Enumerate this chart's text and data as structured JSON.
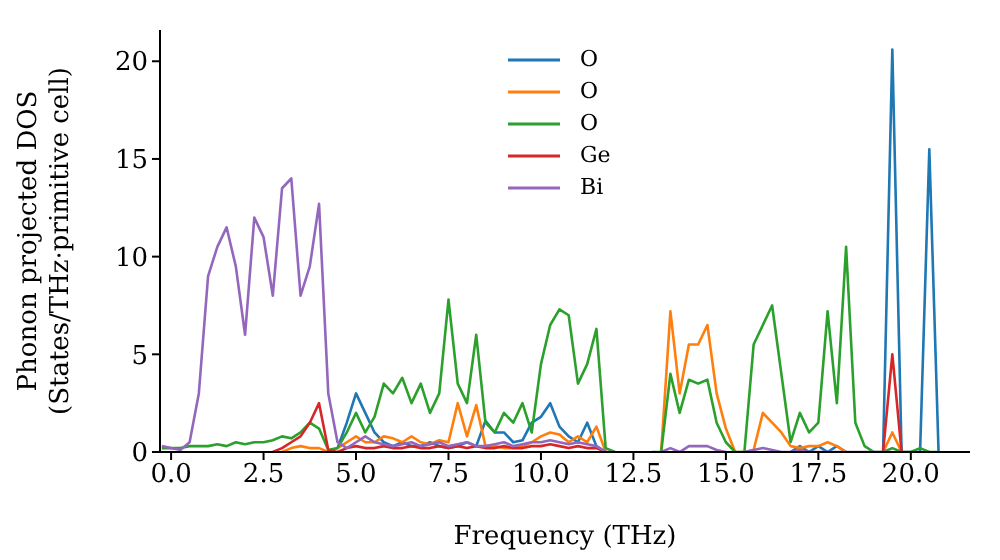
{
  "chart_data": {
    "type": "line",
    "xlabel": "Frequency (THz)",
    "ylabel": "Phonon projected DOS\n(States/THz·primitive cell)",
    "xlim": [
      -0.3,
      21.6
    ],
    "xticks": [
      {
        "value": 0,
        "label": "0.0"
      },
      {
        "value": 2.5,
        "label": "2.5"
      },
      {
        "value": 5,
        "label": "5.0"
      },
      {
        "value": 7.5,
        "label": "7.5"
      },
      {
        "value": 10,
        "label": "10.0"
      },
      {
        "value": 12.5,
        "label": "12.5"
      },
      {
        "value": 15,
        "label": "15.0"
      },
      {
        "value": 17.5,
        "label": "17.5"
      },
      {
        "value": 20,
        "label": "20.0"
      }
    ],
    "ylim": [
      0,
      21.6
    ],
    "yticks": [
      0,
      5,
      10,
      15,
      20
    ],
    "legend": "top",
    "marker": "none",
    "line_style": "solid",
    "x": [
      -0.25,
      0,
      0.25,
      0.5,
      0.75,
      1,
      1.25,
      1.5,
      1.75,
      2,
      2.25,
      2.5,
      2.75,
      3,
      3.25,
      3.5,
      3.75,
      4,
      4.25,
      4.5,
      4.75,
      5,
      5.25,
      5.5,
      5.75,
      6,
      6.25,
      6.5,
      6.75,
      7,
      7.25,
      7.5,
      7.75,
      8,
      8.25,
      8.5,
      8.75,
      9,
      9.25,
      9.5,
      9.75,
      10,
      10.25,
      10.5,
      10.75,
      11,
      11.25,
      11.5,
      11.75,
      12,
      12.25,
      12.5,
      12.75,
      13,
      13.25,
      13.5,
      13.75,
      14,
      14.25,
      14.5,
      14.75,
      15,
      15.25,
      15.5,
      15.75,
      16,
      16.25,
      16.5,
      16.75,
      17,
      17.25,
      17.5,
      17.75,
      18,
      18.25,
      18.5,
      18.75,
      19,
      19.25,
      19.5,
      19.75,
      20,
      20.25,
      20.5,
      20.75
    ],
    "series": [
      {
        "name": "O",
        "color": "#1f77b4",
        "values": [
          null,
          null,
          null,
          null,
          null,
          null,
          null,
          null,
          null,
          null,
          null,
          null,
          null,
          null,
          null,
          null,
          null,
          null,
          null,
          0.2,
          1.5,
          3.0,
          2.0,
          1.0,
          0.5,
          0.3,
          0.5,
          0.3,
          0.3,
          0.5,
          0.3,
          0.2,
          0.3,
          0.5,
          0.3,
          1.6,
          1.0,
          1.0,
          0.5,
          0.6,
          1.5,
          1.8,
          2.5,
          1.3,
          0.8,
          0.5,
          1.5,
          0.3,
          0,
          null,
          null,
          null,
          null,
          null,
          null,
          null,
          null,
          null,
          null,
          null,
          null,
          null,
          null,
          null,
          null,
          null,
          null,
          null,
          0,
          0.3,
          0,
          0.3,
          0,
          0.3,
          0,
          null,
          null,
          null,
          0,
          20.6,
          0,
          0,
          0,
          15.5,
          0
        ]
      },
      {
        "name": "O",
        "color": "#ff7f0e",
        "values": [
          null,
          null,
          null,
          null,
          null,
          null,
          null,
          null,
          null,
          null,
          null,
          null,
          null,
          0,
          0.2,
          0.3,
          0.2,
          0.2,
          0,
          0.2,
          0.5,
          0.8,
          0.5,
          0.5,
          0.8,
          0.7,
          0.5,
          0.8,
          0.5,
          0.4,
          0.6,
          0.5,
          2.5,
          0.8,
          2.4,
          0.3,
          0.3,
          0.2,
          0.2,
          0.3,
          0.5,
          0.8,
          1.0,
          0.9,
          0.5,
          0.8,
          0.5,
          1.3,
          0,
          null,
          null,
          null,
          null,
          null,
          0,
          7.2,
          3.0,
          5.5,
          5.5,
          6.5,
          3.0,
          1.2,
          0,
          0,
          0.1,
          2.0,
          1.5,
          1.0,
          0.3,
          0.2,
          0.3,
          0.3,
          0.5,
          0.3,
          0,
          null,
          null,
          null,
          0,
          1.0,
          0,
          null,
          null,
          null,
          null
        ]
      },
      {
        "name": "O",
        "color": "#2ca02c",
        "values": [
          0.2,
          0.2,
          0.2,
          0.3,
          0.3,
          0.3,
          0.4,
          0.3,
          0.5,
          0.4,
          0.5,
          0.5,
          0.6,
          0.8,
          0.7,
          1.0,
          1.5,
          1.2,
          0.1,
          0.2,
          1.0,
          2.0,
          1.0,
          1.8,
          3.5,
          3.0,
          3.8,
          2.5,
          3.5,
          2.0,
          3.0,
          7.8,
          3.5,
          2.5,
          6.0,
          1.5,
          1.0,
          2.0,
          1.5,
          2.5,
          1.0,
          4.5,
          6.5,
          7.3,
          7.0,
          3.5,
          4.5,
          6.3,
          0.2,
          0,
          null,
          null,
          null,
          0,
          0,
          4.0,
          2.0,
          3.7,
          3.5,
          3.7,
          1.5,
          0.5,
          0,
          0,
          5.5,
          6.5,
          7.5,
          4.0,
          0.5,
          2.0,
          1.0,
          1.5,
          7.2,
          2.5,
          10.5,
          1.5,
          0.3,
          0,
          0,
          0.2,
          0,
          0,
          0.2,
          0,
          0
        ]
      },
      {
        "name": "Ge",
        "color": "#d62728",
        "values": [
          null,
          null,
          null,
          null,
          null,
          null,
          null,
          null,
          null,
          null,
          null,
          null,
          0,
          0.2,
          0.5,
          0.8,
          1.5,
          2.5,
          0.1,
          0,
          0.2,
          0.3,
          0.2,
          0.2,
          0.3,
          0.2,
          0.2,
          0.3,
          0.2,
          0.2,
          0.3,
          0.2,
          0.3,
          0.2,
          0.3,
          0.2,
          0.2,
          0.3,
          0.2,
          0.2,
          0.3,
          0.3,
          0.4,
          0.3,
          0.2,
          0.3,
          0.2,
          0.2,
          0,
          null,
          null,
          null,
          null,
          null,
          null,
          null,
          null,
          null,
          null,
          null,
          null,
          null,
          null,
          null,
          null,
          null,
          null,
          null,
          null,
          null,
          null,
          null,
          null,
          null,
          null,
          null,
          null,
          null,
          0,
          5.0,
          0,
          null,
          null,
          null,
          null
        ]
      },
      {
        "name": "Bi",
        "color": "#9467bd",
        "values": [
          0.3,
          0.2,
          0.1,
          0.5,
          3.0,
          9.0,
          10.5,
          11.5,
          9.5,
          6.0,
          12.0,
          11.0,
          8.0,
          13.5,
          14.0,
          8.0,
          9.5,
          12.7,
          3.0,
          0.5,
          0.2,
          0.5,
          0.8,
          0.5,
          0.4,
          0.3,
          0.4,
          0.5,
          0.3,
          0.4,
          0.5,
          0.3,
          0.4,
          0.5,
          0.3,
          0.3,
          0.4,
          0.5,
          0.3,
          0.4,
          0.5,
          0.5,
          0.6,
          0.5,
          0.4,
          0.5,
          0.4,
          0.3,
          0,
          0,
          null,
          null,
          null,
          null,
          0,
          0.2,
          0,
          0.3,
          0.3,
          0.3,
          0.1,
          0,
          null,
          0,
          0.1,
          0.2,
          0.1,
          0,
          0,
          0.1,
          0,
          0,
          0,
          0,
          0,
          0,
          0,
          0,
          0,
          0,
          null,
          null,
          null,
          null,
          null
        ]
      }
    ]
  }
}
